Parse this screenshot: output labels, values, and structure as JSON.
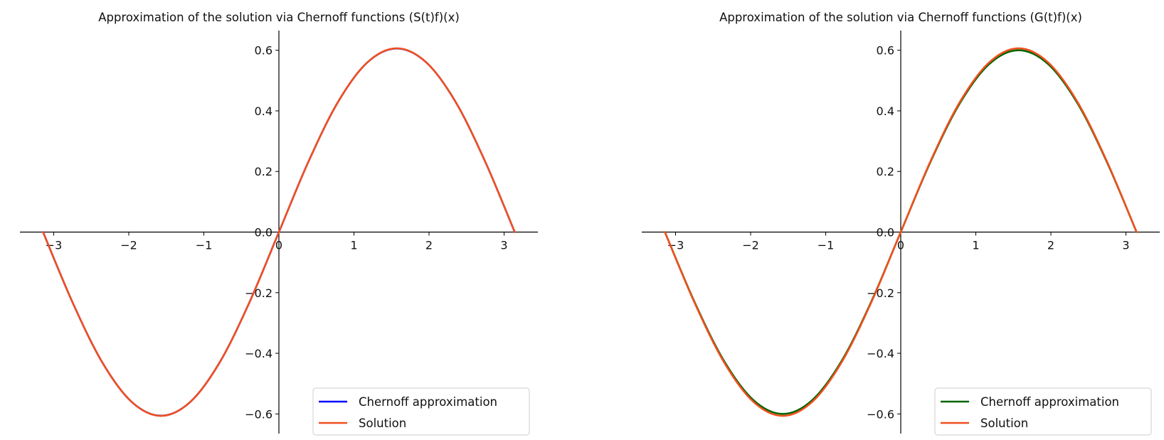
{
  "chart_data": [
    {
      "type": "line",
      "title": "Approximation of the solution via Chernoff functions (S(t)f)(x)",
      "xlabel": "",
      "ylabel": "",
      "xlim": [
        -3.45,
        3.45
      ],
      "ylim": [
        -0.665,
        0.665
      ],
      "xticks": [
        -3,
        -2,
        -1,
        0,
        1,
        2,
        3
      ],
      "xtick_labels": [
        "−3",
        "−2",
        "−1",
        "0",
        "1",
        "2",
        "3"
      ],
      "yticks": [
        -0.6,
        -0.4,
        -0.2,
        0.0,
        0.2,
        0.4,
        0.6
      ],
      "ytick_labels": [
        "−0.6",
        "−0.4",
        "−0.2",
        "0.0",
        "0.2",
        "0.4",
        "0.6"
      ],
      "x": [
        -3.1416,
        -2.7489,
        -2.3562,
        -1.9635,
        -1.5708,
        -1.1781,
        -0.7854,
        -0.3927,
        0.0,
        0.3927,
        0.7854,
        1.1781,
        1.5708,
        1.9635,
        2.3562,
        2.7489,
        3.1416
      ],
      "series": [
        {
          "name": "Chernoff approximation",
          "color": "#0000ff",
          "values": [
            0.0,
            -0.2319,
            -0.4285,
            -0.5599,
            -0.606,
            -0.5599,
            -0.4285,
            -0.2319,
            0.0,
            0.2319,
            0.4285,
            0.5599,
            0.606,
            0.5599,
            0.4285,
            0.2319,
            0.0
          ]
        },
        {
          "name": "Solution",
          "color": "#f0501e",
          "values": [
            0.0,
            -0.2319,
            -0.4285,
            -0.5599,
            -0.6065,
            -0.5599,
            -0.4285,
            -0.2319,
            0.0,
            0.2319,
            0.4285,
            0.5599,
            0.6065,
            0.5599,
            0.4285,
            0.2319,
            0.0
          ]
        }
      ],
      "legend_position": "lower right",
      "grid": false,
      "spines": "centered at origin"
    },
    {
      "type": "line",
      "title": "Approximation of the solution via Chernoff functions (G(t)f)(x)",
      "xlabel": "",
      "ylabel": "",
      "xlim": [
        -3.45,
        3.45
      ],
      "ylim": [
        -0.665,
        0.665
      ],
      "xticks": [
        -3,
        -2,
        -1,
        0,
        1,
        2,
        3
      ],
      "xtick_labels": [
        "−3",
        "−2",
        "−1",
        "0",
        "1",
        "2",
        "3"
      ],
      "yticks": [
        -0.6,
        -0.4,
        -0.2,
        0.0,
        0.2,
        0.4,
        0.6
      ],
      "ytick_labels": [
        "−0.6",
        "−0.4",
        "−0.2",
        "0.0",
        "0.2",
        "0.4",
        "0.6"
      ],
      "x": [
        -3.1416,
        -2.7489,
        -2.3562,
        -1.9635,
        -1.5708,
        -1.1781,
        -0.7854,
        -0.3927,
        0.0,
        0.3927,
        0.7854,
        1.1781,
        1.5708,
        1.9635,
        2.3562,
        2.7489,
        3.1416
      ],
      "series": [
        {
          "name": "Chernoff approximation",
          "color": "#006400",
          "values": [
            0.0,
            -0.2296,
            -0.4243,
            -0.5543,
            -0.6,
            -0.5543,
            -0.4243,
            -0.2296,
            0.0,
            0.2296,
            0.4243,
            0.5543,
            0.6,
            0.5543,
            0.4243,
            0.2296,
            0.0
          ]
        },
        {
          "name": "Solution",
          "color": "#f0501e",
          "values": [
            0.0,
            -0.2319,
            -0.4285,
            -0.5599,
            -0.6065,
            -0.5599,
            -0.4285,
            -0.2319,
            0.0,
            0.2319,
            0.4285,
            0.5599,
            0.6065,
            0.5599,
            0.4285,
            0.2319,
            0.0
          ]
        }
      ],
      "legend_position": "lower right",
      "grid": false,
      "spines": "centered at origin"
    }
  ]
}
